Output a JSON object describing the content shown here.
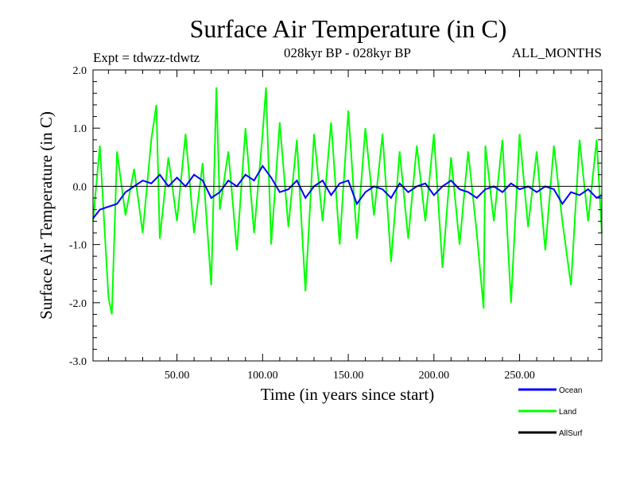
{
  "chart_data": {
    "type": "line",
    "title": "Surface Air Temperature (in C)",
    "left_note": "Expt = tdwzz-tdwtz",
    "center_note": "028kyr BP - 028kyr BP",
    "right_note": "ALL_MONTHS",
    "xlabel": "Time (in years since start)",
    "ylabel": "Surface Air Temperature (in C)",
    "xlim": [
      1,
      298
    ],
    "ylim": [
      -3.0,
      2.0
    ],
    "x_ticks": [
      50,
      100,
      150,
      200,
      250
    ],
    "x_tick_labels": [
      "50.00",
      "100.00",
      "150.00",
      "200.00",
      "250.00"
    ],
    "y_ticks": [
      -3.0,
      -2.0,
      -1.0,
      0.0,
      1.0,
      2.0
    ],
    "y_tick_labels": [
      "-3.0",
      "-2.0",
      "-1.0",
      "0.0",
      "1.0",
      "2.0"
    ],
    "reference_line_y": 0.0,
    "grid": false,
    "legend_position": "bottom-right",
    "series": [
      {
        "name": "Ocean",
        "color": "#0000ff",
        "x": [
          1,
          5,
          10,
          15,
          20,
          25,
          30,
          35,
          40,
          45,
          50,
          55,
          60,
          65,
          70,
          75,
          80,
          85,
          90,
          95,
          100,
          105,
          110,
          115,
          120,
          125,
          130,
          135,
          140,
          145,
          150,
          155,
          160,
          165,
          170,
          175,
          180,
          185,
          190,
          195,
          200,
          205,
          210,
          215,
          220,
          225,
          230,
          235,
          240,
          245,
          250,
          255,
          260,
          265,
          270,
          275,
          280,
          285,
          290,
          295,
          298
        ],
        "y": [
          -0.55,
          -0.4,
          -0.35,
          -0.3,
          -0.1,
          0.0,
          0.1,
          0.05,
          0.2,
          0.0,
          0.15,
          0.0,
          0.2,
          0.1,
          -0.2,
          -0.1,
          0.1,
          0.0,
          0.2,
          0.1,
          0.35,
          0.15,
          -0.1,
          -0.05,
          0.1,
          -0.2,
          0.0,
          0.1,
          -0.15,
          0.05,
          0.1,
          -0.3,
          -0.1,
          0.0,
          -0.05,
          -0.2,
          0.05,
          -0.1,
          0.0,
          0.05,
          -0.15,
          0.0,
          0.1,
          -0.05,
          -0.1,
          -0.2,
          -0.05,
          0.0,
          -0.1,
          0.05,
          -0.05,
          0.0,
          -0.1,
          0.0,
          -0.05,
          -0.3,
          -0.1,
          -0.15,
          -0.05,
          -0.2,
          -0.15
        ]
      },
      {
        "name": "Land",
        "color": "#00ff00",
        "x": [
          1,
          5,
          10,
          12,
          15,
          20,
          25,
          30,
          35,
          38,
          40,
          45,
          50,
          55,
          60,
          65,
          70,
          73,
          75,
          80,
          85,
          90,
          95,
          100,
          102,
          105,
          110,
          115,
          120,
          125,
          130,
          135,
          140,
          145,
          150,
          155,
          160,
          165,
          170,
          175,
          180,
          185,
          190,
          195,
          200,
          205,
          210,
          215,
          220,
          225,
          229,
          230,
          235,
          240,
          245,
          250,
          255,
          260,
          265,
          270,
          275,
          280,
          285,
          290,
          295,
          298
        ],
        "y": [
          -0.6,
          0.7,
          -1.9,
          -2.2,
          0.6,
          -0.5,
          0.3,
          -0.8,
          0.8,
          1.4,
          -0.9,
          0.5,
          -0.6,
          0.9,
          -0.8,
          0.4,
          -1.7,
          1.7,
          -0.4,
          0.6,
          -1.1,
          1.0,
          -0.8,
          0.9,
          1.7,
          -1.0,
          1.1,
          -0.7,
          0.8,
          -1.8,
          0.9,
          -0.6,
          1.1,
          -1.0,
          1.3,
          -0.9,
          1.0,
          -0.5,
          0.9,
          -1.3,
          0.6,
          -0.9,
          0.7,
          -0.6,
          0.9,
          -1.4,
          0.5,
          -1.0,
          0.6,
          -0.8,
          -2.1,
          0.7,
          -0.6,
          0.8,
          -2.0,
          0.9,
          -0.7,
          0.6,
          -1.1,
          0.7,
          -0.6,
          -1.7,
          0.8,
          -0.6,
          0.8,
          -0.8
        ]
      },
      {
        "name": "AllSurf",
        "color": "#000000",
        "x": [
          1,
          298
        ],
        "y": [
          0.0,
          0.0
        ]
      }
    ]
  }
}
